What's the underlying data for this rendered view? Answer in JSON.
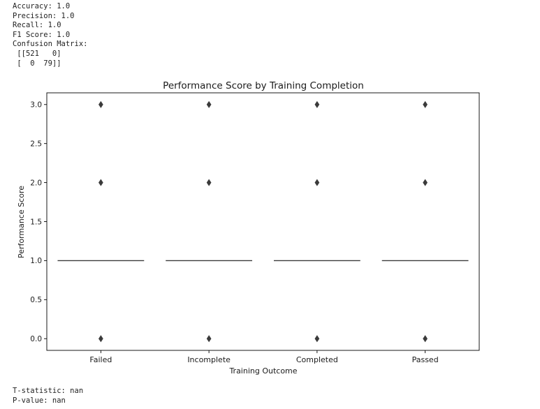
{
  "console_top": [
    "Accuracy: 1.0",
    "Precision: 1.0",
    "Recall: 1.0",
    "F1 Score: 1.0",
    "Confusion Matrix:",
    " [[521   0]",
    " [  0  79]]"
  ],
  "console_bottom": [
    "T-statistic: nan",
    "P-value: nan"
  ],
  "chart_data": {
    "type": "box",
    "title": "Performance Score by Training Completion",
    "xlabel": "Training Outcome",
    "ylabel": "Performance Score",
    "categories": [
      "Failed",
      "Incomplete",
      "Completed",
      "Passed"
    ],
    "medians": [
      1.0,
      1.0,
      1.0,
      1.0
    ],
    "outliers": [
      [
        0.0,
        2.0,
        3.0
      ],
      [
        0.0,
        2.0,
        3.0
      ],
      [
        0.0,
        2.0,
        3.0
      ],
      [
        0.0,
        2.0,
        3.0
      ]
    ],
    "ylim": [
      -0.15,
      3.15
    ],
    "yticks": [
      "0.0",
      "0.5",
      "1.0",
      "1.5",
      "2.0",
      "2.5",
      "3.0"
    ],
    "grid": false,
    "colors": {
      "median": "#3b3b3b",
      "outlier": "#3b3b3b",
      "axis": "#000000"
    }
  }
}
